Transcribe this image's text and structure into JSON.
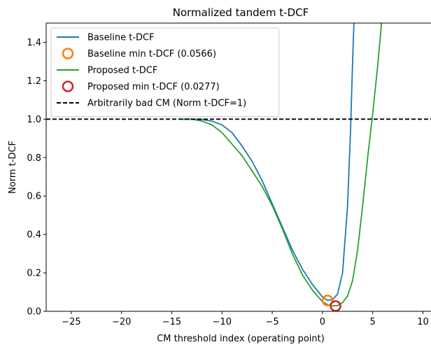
{
  "chart_data": {
    "type": "line",
    "title": "Normalized tandem t-DCF",
    "xlabel": "CM threshold index (operating point)",
    "ylabel": "Norm t-DCF",
    "xlim": [
      -27.5,
      11.5
    ],
    "ylim": [
      0.0,
      1.5
    ],
    "x_ticks": [
      -25,
      -20,
      -15,
      -10,
      -5,
      0,
      5,
      10
    ],
    "x_tick_labels": [
      "−25",
      "−20",
      "−15",
      "−10",
      "−5",
      "0",
      "5",
      "10"
    ],
    "y_ticks": [
      0.0,
      0.2,
      0.4,
      0.6,
      0.8,
      1.0,
      1.2,
      1.4
    ],
    "y_tick_labels": [
      "0.0",
      "0.2",
      "0.4",
      "0.6",
      "0.8",
      "1.0",
      "1.2",
      "1.4"
    ],
    "grid": false,
    "legend_position": "top-left",
    "series": [
      {
        "name": "Baseline t-DCF",
        "kind": "line",
        "color": "#1f77b4",
        "points": [
          [
            -14,
            1.0
          ],
          [
            -13,
            1.0
          ],
          [
            -12,
            0.998
          ],
          [
            -11,
            0.99
          ],
          [
            -10,
            0.97
          ],
          [
            -9,
            0.93
          ],
          [
            -8,
            0.86
          ],
          [
            -7,
            0.78
          ],
          [
            -6,
            0.68
          ],
          [
            -5,
            0.56
          ],
          [
            -4,
            0.44
          ],
          [
            -3,
            0.32
          ],
          [
            -2,
            0.22
          ],
          [
            -1,
            0.14
          ],
          [
            0,
            0.075
          ],
          [
            0.5,
            0.058
          ],
          [
            1,
            0.06
          ],
          [
            1.5,
            0.09
          ],
          [
            2,
            0.2
          ],
          [
            2.5,
            0.55
          ],
          [
            2.8,
            0.95
          ],
          [
            3,
            1.3
          ],
          [
            3.2,
            1.6
          ]
        ]
      },
      {
        "name": "Baseline min t-DCF (0.0566)",
        "kind": "marker",
        "color": "#ff7f0e",
        "x": 0.5,
        "y": 0.0566
      },
      {
        "name": "Proposed t-DCF",
        "kind": "line",
        "color": "#2ca02c",
        "points": [
          [
            -14,
            1.0
          ],
          [
            -13,
            1.0
          ],
          [
            -12,
            0.99
          ],
          [
            -11,
            0.97
          ],
          [
            -10,
            0.93
          ],
          [
            -9,
            0.87
          ],
          [
            -8,
            0.81
          ],
          [
            -7,
            0.73
          ],
          [
            -6,
            0.65
          ],
          [
            -5,
            0.55
          ],
          [
            -4,
            0.43
          ],
          [
            -3,
            0.3
          ],
          [
            -2,
            0.19
          ],
          [
            -1,
            0.11
          ],
          [
            0,
            0.05
          ],
          [
            0.5,
            0.035
          ],
          [
            1,
            0.028
          ],
          [
            1.5,
            0.03
          ],
          [
            2,
            0.045
          ],
          [
            2.5,
            0.08
          ],
          [
            3,
            0.16
          ],
          [
            3.5,
            0.32
          ],
          [
            4,
            0.55
          ],
          [
            4.5,
            0.8
          ],
          [
            5,
            1.03
          ],
          [
            5.5,
            1.28
          ],
          [
            5.8,
            1.45
          ],
          [
            6,
            1.6
          ]
        ]
      },
      {
        "name": "Proposed min t-DCF (0.0277)",
        "kind": "marker",
        "color": "#d62728",
        "x": 1.3,
        "y": 0.0277
      },
      {
        "name": "Arbitrarily bad CM (Norm t-DCF=1)",
        "kind": "hline",
        "color": "#000000",
        "y": 1.0
      }
    ]
  }
}
